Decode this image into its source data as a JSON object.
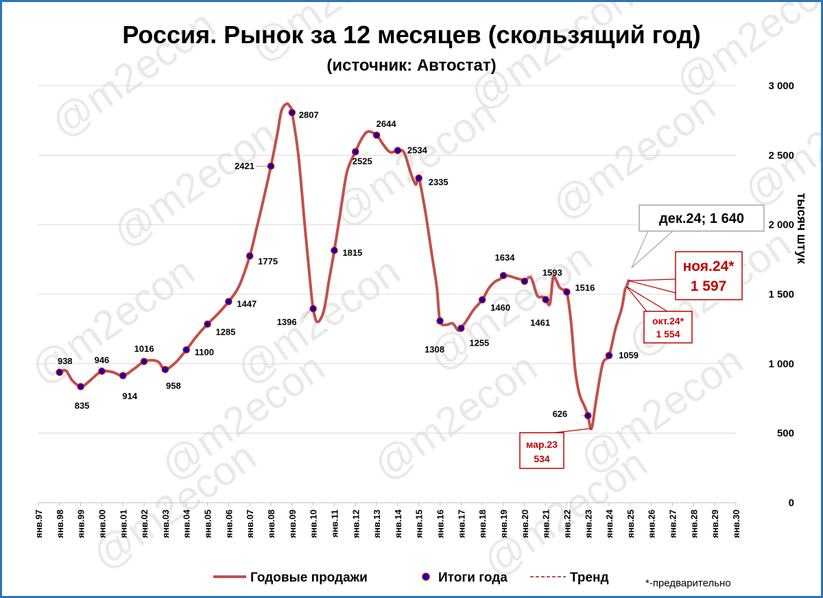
{
  "title": "Россия. Рынок за 12 месяцев (скользящий год)",
  "subtitle": "(источник: Автостат)",
  "watermark": "@m2econ",
  "note": "*-предварительно",
  "colors": {
    "line": "#c0504d",
    "marker_fill": "#0000c0",
    "marker_edge": "#c00000",
    "grid": "#d9d9d9",
    "frame": "#2e75b6",
    "callout_red": "#c00000"
  },
  "chart_data": {
    "type": "line",
    "ylabel": "тысяч штук",
    "ylim": [
      0,
      3000
    ],
    "yticks": [
      0,
      500,
      1000,
      1500,
      2000,
      2500,
      3000
    ],
    "ytick_labels": [
      "0",
      "500",
      "1 000",
      "1 500",
      "2 000",
      "2 500",
      "3 000"
    ],
    "xlim": [
      1997,
      2030
    ],
    "xticks": [
      "янв.97",
      "янв.98",
      "янв.99",
      "янв.00",
      "янв.01",
      "янв.02",
      "янв.03",
      "янв.04",
      "янв.05",
      "янв.06",
      "янв.07",
      "янв.08",
      "янв.09",
      "янв.10",
      "янв.11",
      "янв.12",
      "янв.13",
      "янв.14",
      "янв.15",
      "янв.16",
      "янв.17",
      "янв.18",
      "янв.19",
      "янв.20",
      "янв.21",
      "янв.22",
      "янв.23",
      "янв.24",
      "янв.25",
      "янв.26",
      "янв.27",
      "янв.28",
      "янв.29",
      "янв.30"
    ],
    "legend": [
      "Годовые продажи",
      "Итоги года",
      "Тренд"
    ],
    "series": [
      {
        "name": "Годовые продажи",
        "x": [
          1998.0,
          1998.3,
          1998.6,
          1999.0,
          1999.3,
          1999.6,
          2000.0,
          2000.5,
          2001.0,
          2001.5,
          2002.0,
          2002.4,
          2002.7,
          2003.0,
          2003.5,
          2004.0,
          2004.5,
          2005.0,
          2005.5,
          2006.0,
          2006.5,
          2007.0,
          2007.3,
          2007.6,
          2008.0,
          2008.3,
          2008.5,
          2008.75,
          2008.9,
          2009.0,
          2009.3,
          2009.6,
          2009.85,
          2010.0,
          2010.2,
          2010.5,
          2010.75,
          2011.0,
          2011.3,
          2011.6,
          2012.0,
          2012.3,
          2012.6,
          2013.0,
          2013.3,
          2013.5,
          2013.7,
          2014.0,
          2014.3,
          2014.6,
          2014.85,
          2015.0,
          2015.3,
          2015.6,
          2015.85,
          2016.0,
          2016.3,
          2016.6,
          2016.85,
          2017.0,
          2017.3,
          2017.6,
          2018.0,
          2018.3,
          2018.6,
          2018.85,
          2019.0,
          2019.3,
          2019.6,
          2019.85,
          2020.0,
          2020.3,
          2020.6,
          2020.85,
          2021.0,
          2021.2,
          2021.35,
          2021.5,
          2021.65,
          2021.85,
          2022.0,
          2022.2,
          2022.4,
          2022.6,
          2022.85,
          2023.0,
          2023.17,
          2023.4,
          2023.7,
          2024.0,
          2024.3,
          2024.6,
          2024.75,
          2024.83,
          2024.92
        ],
        "y": [
          938,
          950,
          880,
          835,
          860,
          900,
          946,
          940,
          914,
          960,
          1016,
          1025,
          1010,
          958,
          1010,
          1100,
          1200,
          1285,
          1360,
          1447,
          1560,
          1775,
          1960,
          2150,
          2421,
          2650,
          2820,
          2870,
          2850,
          2807,
          2500,
          2000,
          1600,
          1396,
          1300,
          1380,
          1600,
          1815,
          2100,
          2380,
          2525,
          2620,
          2670,
          2644,
          2580,
          2540,
          2520,
          2534,
          2520,
          2380,
          2290,
          2335,
          2100,
          1800,
          1550,
          1308,
          1280,
          1290,
          1240,
          1255,
          1320,
          1390,
          1460,
          1540,
          1590,
          1610,
          1634,
          1630,
          1615,
          1605,
          1593,
          1620,
          1490,
          1480,
          1461,
          1430,
          1620,
          1600,
          1550,
          1530,
          1516,
          1300,
          950,
          780,
          690,
          626,
          534,
          750,
          1000,
          1059,
          1250,
          1400,
          1530,
          1554,
          1597
        ]
      },
      {
        "name": "Итоги года",
        "x": [
          1998,
          1999,
          2000,
          2001,
          2002,
          2003,
          2004,
          2005,
          2006,
          2007,
          2008,
          2009,
          2010,
          2011,
          2012,
          2013,
          2014,
          2015,
          2016,
          2017,
          2018,
          2019,
          2020,
          2021,
          2022,
          2023
        ],
        "y": [
          938,
          835,
          946,
          914,
          1016,
          958,
          1100,
          1285,
          1447,
          1775,
          2421,
          2807,
          1396,
          1815,
          2525,
          2644,
          2534,
          2335,
          1308,
          1255,
          1460,
          1634,
          1593,
          1461,
          1516,
          626
        ],
        "labels": [
          "938",
          "835",
          "946",
          "914",
          "1016",
          "958",
          "1100",
          "1285",
          "1447",
          "1775",
          "2421",
          "2807",
          "1396",
          "1815",
          "2525",
          "2644",
          "2534",
          "2335",
          "1308",
          "1255",
          "1460",
          "1634",
          "1593",
          "1461",
          "1516",
          "626"
        ]
      },
      {
        "name": "Тренд",
        "x": [],
        "y": []
      }
    ],
    "annotations": [
      {
        "text": "1059",
        "x": 2024.0,
        "y": 1059
      },
      {
        "text": "мар.23",
        "text2": "534",
        "x": 2023.17,
        "y": 534
      },
      {
        "text": "дек.24; 1 640",
        "x": 2025.0,
        "y": 1640
      },
      {
        "text": "ноя.24*",
        "text2": "1 597",
        "x": 2024.92,
        "y": 1597
      },
      {
        "text": "окт.24*",
        "text2": "1 554",
        "x": 2024.83,
        "y": 1554
      }
    ]
  }
}
